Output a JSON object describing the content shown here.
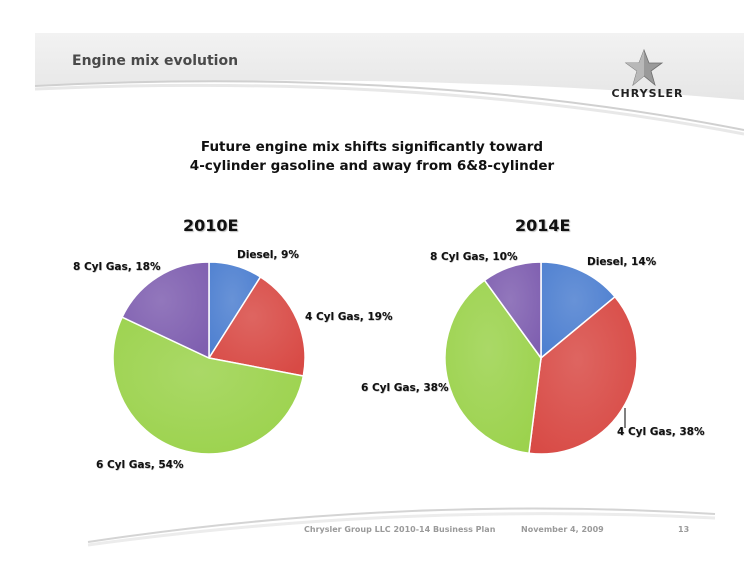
{
  "header": {
    "title": "Engine mix evolution"
  },
  "logo": {
    "text": "CHRYSLER"
  },
  "subtitle": {
    "line1": "Future engine mix shifts significantly toward",
    "line2": "4-cylinder gasoline and away from 6&8-cylinder"
  },
  "chart_data": [
    {
      "type": "pie",
      "title": "2010E",
      "slices": [
        {
          "label": "Diesel, 9%",
          "name": "Diesel",
          "value": 9,
          "color": "#4d7fd0"
        },
        {
          "label": "4 Cyl Gas, 19%",
          "name": "4 Cyl Gas",
          "value": 19,
          "color": "#d84a45"
        },
        {
          "label": "6 Cyl Gas, 54%",
          "name": "6 Cyl Gas",
          "value": 54,
          "color": "#9bd24c"
        },
        {
          "label": "8 Cyl Gas, 18%",
          "name": "8 Cyl Gas",
          "value": 18,
          "color": "#7f5fb0"
        }
      ]
    },
    {
      "type": "pie",
      "title": "2014E",
      "slices": [
        {
          "label": "Diesel, 14%",
          "name": "Diesel",
          "value": 14,
          "color": "#4d7fd0"
        },
        {
          "label": "4 Cyl Gas, 38%",
          "name": "4 Cyl Gas",
          "value": 38,
          "color": "#d84a45"
        },
        {
          "label": "6 Cyl Gas, 38%",
          "name": "6 Cyl Gas",
          "value": 38,
          "color": "#9bd24c"
        },
        {
          "label": "8 Cyl Gas, 10%",
          "name": "8 Cyl Gas",
          "value": 10,
          "color": "#7f5fb0"
        }
      ]
    }
  ],
  "footer": {
    "company": "Chrysler Group LLC 2010-14 Business Plan",
    "date": "November 4, 2009",
    "page": "13"
  }
}
